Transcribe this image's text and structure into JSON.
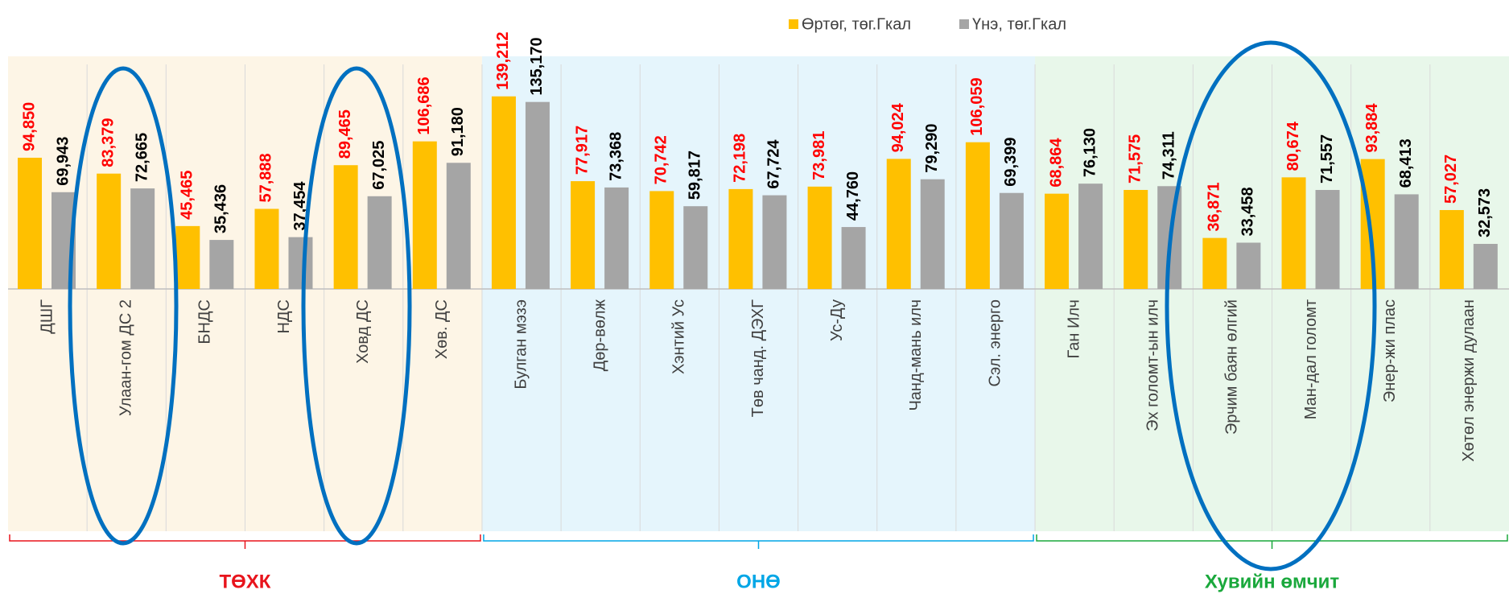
{
  "chart_data": {
    "type": "bar",
    "categories": [
      "ДШГ",
      "Улаан-гом ДС 2",
      "БНДС",
      "НДС",
      "Ховд ДС",
      "Хөв. ДС",
      "Булган мэзэ",
      "Дөр-вөлж",
      "Хэнтий Ус",
      "Төв чанд. ДЭХГ",
      "Ус-Ду",
      "Чанд-мань илч",
      "Сэл. энерго",
      "Ган Илч",
      "Эх голомт-ын илч",
      "Эрчим баян өлгий",
      "Ман-дал голомт",
      "Энер-жи плас",
      "Хөтөл энержи дулаан"
    ],
    "series": [
      {
        "name": "Өртөг, төг.Гкал",
        "color": "#ffc000",
        "label_color": "#ff0000",
        "values": [
          94850,
          83379,
          45465,
          57888,
          89465,
          106686,
          139212,
          77917,
          70742,
          72198,
          73981,
          94024,
          106059,
          68864,
          71575,
          36871,
          80674,
          93884,
          57027
        ],
        "value_labels": [
          "94,850",
          "83,379",
          "45,465",
          "57,888",
          "89,465",
          "106,686",
          "139,212",
          "77,917",
          "70,742",
          "72,198",
          "73,981",
          "94,024",
          "106,059",
          "68,864",
          "71,575",
          "36,871",
          "80,674",
          "93,884",
          "57,027"
        ]
      },
      {
        "name": "Үнэ, төг.Гкал",
        "color": "#a5a5a5",
        "label_color": "#000000",
        "values": [
          69943,
          72665,
          35436,
          37454,
          67025,
          91180,
          135170,
          73368,
          59817,
          67724,
          44760,
          79290,
          69399,
          76130,
          74311,
          33458,
          71557,
          68413,
          32573
        ],
        "value_labels": [
          "69,943",
          "72,665",
          "35,436",
          "37,454",
          "67,025",
          "91,180",
          "135,170",
          "73,368",
          "59,817",
          "67,724",
          "44,760",
          "79,290",
          "69,399",
          "76,130",
          "74,311",
          "33,458",
          "71,557",
          "68,413",
          "32,573"
        ]
      }
    ],
    "groups": [
      "ТӨХК",
      "ОНӨ",
      "Хувийн өмчит"
    ],
    "ylim": [
      0,
      160000
    ]
  }
}
